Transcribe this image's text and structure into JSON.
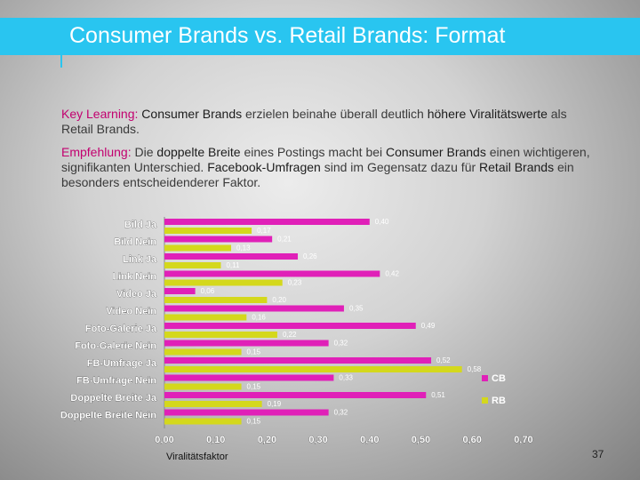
{
  "slide": {
    "title": "Consumer Brands vs. Retail Brands: Format",
    "page_number": "37",
    "colors": {
      "title_bar": "#29c5f0",
      "keyword": "#c2006f"
    }
  },
  "text": {
    "p1": {
      "label": "Key Learning:",
      "s1": " Consumer Brands",
      "s2": " erzielen beinahe überall deutlich ",
      "s3": "höhere Viralitätswerte",
      "s4": " als Retail Brands."
    },
    "p2": {
      "label": "Empfehlung:",
      "s1": " Die ",
      "s2": "doppelte Breite",
      "s3": " eines Postings macht bei ",
      "s4": "Consumer Brands",
      "s5": " einen wichtigeren, signifikanten Unterschied. ",
      "s6": "Facebook-Umfragen",
      "s7": " sind im Gegensatz dazu für ",
      "s8": "Retail Brands",
      "s9": " ein besonders entscheidenderer Faktor."
    }
  },
  "chart_data": {
    "type": "bar",
    "orientation": "horizontal",
    "categories": [
      "Bild Ja",
      "Bild Nein",
      "Link Ja",
      "Link Nein",
      "Video Ja",
      "Video Nein",
      "Foto-Galerie Ja",
      "Foto-Galerie Nein",
      "FB-Umfrage Ja",
      "FB-Umfrage Nein",
      "Doppelte Breite Ja",
      "Doppelte Breite Nein"
    ],
    "series": [
      {
        "name": "CB",
        "color": "#e020b8",
        "values": [
          0.4,
          0.21,
          0.26,
          0.42,
          0.06,
          0.35,
          0.49,
          0.32,
          0.52,
          0.33,
          0.51,
          0.32
        ],
        "labels": [
          "0,40",
          "0,21",
          "0,26",
          "0,42",
          "0,06",
          "0,35",
          "0,49",
          "0,32",
          "0,52",
          "0,33",
          "0,51",
          "0,32"
        ]
      },
      {
        "name": "RB",
        "color": "#d4d81c",
        "values": [
          0.17,
          0.13,
          0.11,
          0.23,
          0.2,
          0.16,
          0.22,
          0.15,
          0.58,
          0.15,
          0.19,
          0.15
        ],
        "labels": [
          "0,17",
          "0,13",
          "0,11",
          "0,23",
          "0,20",
          "0,16",
          "0,22",
          "0,15",
          "0,58",
          "0,15",
          "0,19",
          "0,15"
        ]
      }
    ],
    "xlabel": "Viralitätsfaktor",
    "xlim": [
      0,
      0.7
    ],
    "xticks": [
      "0,00",
      "0,10",
      "0,20",
      "0,30",
      "0,40",
      "0,50",
      "0,60",
      "0,70"
    ],
    "legend": "right",
    "grid": false
  }
}
